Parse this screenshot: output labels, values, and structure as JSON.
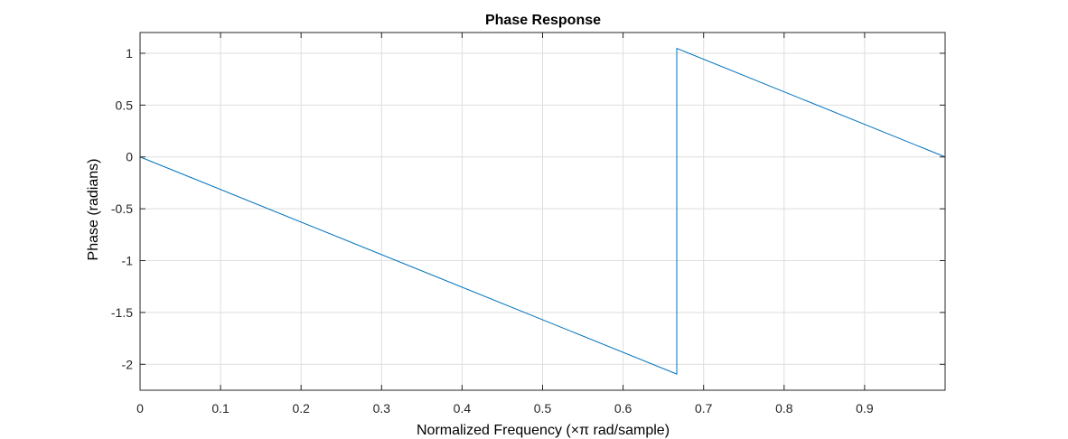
{
  "chart_data": {
    "type": "line",
    "title": "Phase Response",
    "xlabel": "Normalized Frequency (×π rad/sample)",
    "ylabel": "Phase (radians)",
    "xlim": [
      0,
      1.0
    ],
    "ylim": [
      -2.25,
      1.2
    ],
    "xticks": [
      0,
      0.1,
      0.2,
      0.3,
      0.4,
      0.5,
      0.6,
      0.7,
      0.8,
      0.9
    ],
    "xtick_labels": [
      "0",
      "0.1",
      "0.2",
      "0.3",
      "0.4",
      "0.5",
      "0.6",
      "0.7",
      "0.8",
      "0.9"
    ],
    "yticks": [
      1,
      0.5,
      0,
      -0.5,
      -1,
      -1.5,
      -2
    ],
    "ytick_labels": [
      "1",
      "0.5",
      "0",
      "-0.5",
      "-1",
      "-1.5",
      "-2"
    ],
    "grid": true,
    "series": [
      {
        "color": "#0072BD",
        "x": [
          0,
          0.6667,
          0.6667,
          1.0
        ],
        "y": [
          0,
          -2.094,
          1.047,
          0
        ]
      }
    ]
  }
}
